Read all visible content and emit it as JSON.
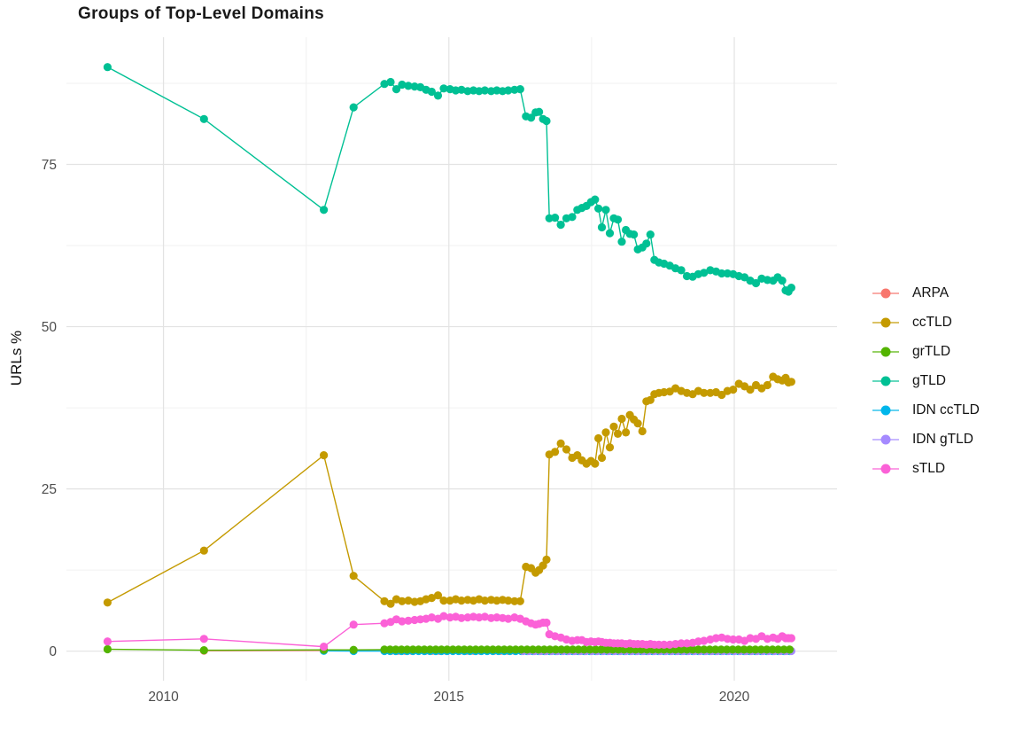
{
  "chart_data": {
    "type": "line",
    "title": "Groups of Top-Level Domains",
    "xlabel": "",
    "ylabel": "URLs %",
    "x_ticks": [
      2010,
      2015,
      2020
    ],
    "y_ticks": [
      0,
      25,
      50,
      75
    ],
    "x_minor_ticks": [
      2012.5,
      2017.5
    ],
    "y_minor_ticks": [
      12.5,
      37.5,
      62.5,
      87.5
    ],
    "xlim": [
      2008.3,
      2021.8
    ],
    "ylim": [
      -4.55,
      94.6
    ],
    "grid": true,
    "legend_position": "right",
    "panel_background": "#ffffff",
    "grid_major_color": "#e3e3e3",
    "grid_minor_color": "#f1f1f1",
    "tick_label_color": "#4d4d4d",
    "text_color": "#1a1a1a",
    "draw_order": [
      "ARPA",
      "IDN ccTLD",
      "IDN gTLD",
      "ccTLD",
      "grTLD",
      "gTLD",
      "sTLD"
    ],
    "series": [
      {
        "name": "ARPA",
        "color": "#F8766D",
        "points": [
          [
            2010.71,
            0.08
          ],
          [
            2012.81,
            0.12
          ]
        ],
        "flat": {
          "from": 2013.87,
          "to": 2021.0,
          "step": 0.12,
          "value": 0.05
        }
      },
      {
        "name": "ccTLD",
        "color": "#C49A00",
        "points": [
          [
            2009.02,
            7.5
          ],
          [
            2010.71,
            15.5
          ],
          [
            2012.81,
            30.2
          ],
          [
            2013.33,
            11.6
          ],
          [
            2013.87,
            7.7
          ],
          [
            2013.98,
            7.3
          ],
          [
            2014.08,
            8.0
          ],
          [
            2014.18,
            7.7
          ],
          [
            2014.29,
            7.8
          ],
          [
            2014.4,
            7.6
          ],
          [
            2014.5,
            7.7
          ],
          [
            2014.6,
            8.0
          ],
          [
            2014.7,
            8.2
          ],
          [
            2014.81,
            8.6
          ],
          [
            2014.91,
            7.8
          ],
          [
            2015.02,
            7.8
          ],
          [
            2015.12,
            8.0
          ],
          [
            2015.22,
            7.8
          ],
          [
            2015.33,
            7.9
          ],
          [
            2015.43,
            7.8
          ],
          [
            2015.53,
            8.0
          ],
          [
            2015.63,
            7.8
          ],
          [
            2015.74,
            7.9
          ],
          [
            2015.84,
            7.8
          ],
          [
            2015.94,
            7.9
          ],
          [
            2016.04,
            7.8
          ],
          [
            2016.15,
            7.7
          ],
          [
            2016.25,
            7.7
          ],
          [
            2016.35,
            13.0
          ],
          [
            2016.44,
            12.8
          ],
          [
            2016.52,
            12.1
          ],
          [
            2016.58,
            12.5
          ],
          [
            2016.65,
            13.2
          ],
          [
            2016.71,
            14.1
          ],
          [
            2016.76,
            30.3
          ],
          [
            2016.86,
            30.7
          ],
          [
            2016.96,
            32.0
          ],
          [
            2017.06,
            31.1
          ],
          [
            2017.16,
            29.8
          ],
          [
            2017.25,
            30.2
          ],
          [
            2017.33,
            29.4
          ],
          [
            2017.41,
            28.9
          ],
          [
            2017.49,
            29.3
          ],
          [
            2017.56,
            28.9
          ],
          [
            2017.62,
            32.8
          ],
          [
            2017.68,
            29.8
          ],
          [
            2017.75,
            33.7
          ],
          [
            2017.82,
            31.4
          ],
          [
            2017.89,
            34.6
          ],
          [
            2017.96,
            33.5
          ],
          [
            2018.03,
            35.8
          ],
          [
            2018.1,
            33.7
          ],
          [
            2018.17,
            36.4
          ],
          [
            2018.24,
            35.7
          ],
          [
            2018.31,
            35.1
          ],
          [
            2018.39,
            33.9
          ],
          [
            2018.46,
            38.5
          ],
          [
            2018.53,
            38.7
          ],
          [
            2018.6,
            39.6
          ],
          [
            2018.68,
            39.8
          ],
          [
            2018.77,
            39.9
          ],
          [
            2018.87,
            40.0
          ],
          [
            2018.97,
            40.5
          ],
          [
            2019.07,
            40.1
          ],
          [
            2019.17,
            39.8
          ],
          [
            2019.27,
            39.6
          ],
          [
            2019.37,
            40.1
          ],
          [
            2019.47,
            39.8
          ],
          [
            2019.58,
            39.8
          ],
          [
            2019.68,
            39.9
          ],
          [
            2019.78,
            39.5
          ],
          [
            2019.88,
            40.1
          ],
          [
            2019.98,
            40.3
          ],
          [
            2020.08,
            41.2
          ],
          [
            2020.18,
            40.8
          ],
          [
            2020.28,
            40.3
          ],
          [
            2020.38,
            41.0
          ],
          [
            2020.48,
            40.5
          ],
          [
            2020.58,
            41.0
          ],
          [
            2020.68,
            42.3
          ],
          [
            2020.76,
            41.9
          ],
          [
            2020.84,
            41.7
          ],
          [
            2020.9,
            42.1
          ],
          [
            2020.95,
            41.4
          ],
          [
            2021.0,
            41.5
          ]
        ]
      },
      {
        "name": "grTLD",
        "color": "#53B400",
        "points": [
          [
            2009.02,
            0.3
          ],
          [
            2010.71,
            0.15
          ],
          [
            2012.81,
            0.2
          ],
          [
            2013.33,
            0.2
          ]
        ],
        "flat": {
          "from": 2013.87,
          "to": 2021.0,
          "step": 0.1,
          "value": 0.25
        }
      },
      {
        "name": "gTLD",
        "color": "#00C094",
        "points": [
          [
            2009.02,
            90.0
          ],
          [
            2010.71,
            82.0
          ],
          [
            2012.81,
            68.0
          ],
          [
            2013.33,
            83.8
          ],
          [
            2013.87,
            87.4
          ],
          [
            2013.98,
            87.7
          ],
          [
            2014.08,
            86.6
          ],
          [
            2014.18,
            87.3
          ],
          [
            2014.29,
            87.1
          ],
          [
            2014.4,
            87.0
          ],
          [
            2014.5,
            86.9
          ],
          [
            2014.6,
            86.5
          ],
          [
            2014.7,
            86.2
          ],
          [
            2014.81,
            85.6
          ],
          [
            2014.91,
            86.7
          ],
          [
            2015.02,
            86.6
          ],
          [
            2015.12,
            86.4
          ],
          [
            2015.22,
            86.5
          ],
          [
            2015.33,
            86.3
          ],
          [
            2015.43,
            86.4
          ],
          [
            2015.53,
            86.3
          ],
          [
            2015.63,
            86.4
          ],
          [
            2015.74,
            86.3
          ],
          [
            2015.84,
            86.4
          ],
          [
            2015.94,
            86.3
          ],
          [
            2016.04,
            86.4
          ],
          [
            2016.15,
            86.5
          ],
          [
            2016.25,
            86.6
          ],
          [
            2016.35,
            82.4
          ],
          [
            2016.44,
            82.2
          ],
          [
            2016.52,
            83.0
          ],
          [
            2016.58,
            83.1
          ],
          [
            2016.65,
            82.0
          ],
          [
            2016.71,
            81.7
          ],
          [
            2016.76,
            66.7
          ],
          [
            2016.86,
            66.8
          ],
          [
            2016.96,
            65.7
          ],
          [
            2017.06,
            66.7
          ],
          [
            2017.16,
            66.9
          ],
          [
            2017.25,
            68.0
          ],
          [
            2017.33,
            68.3
          ],
          [
            2017.41,
            68.6
          ],
          [
            2017.49,
            69.2
          ],
          [
            2017.56,
            69.6
          ],
          [
            2017.62,
            68.2
          ],
          [
            2017.68,
            65.3
          ],
          [
            2017.75,
            68.0
          ],
          [
            2017.82,
            64.4
          ],
          [
            2017.89,
            66.7
          ],
          [
            2017.96,
            66.5
          ],
          [
            2018.03,
            63.1
          ],
          [
            2018.1,
            64.9
          ],
          [
            2018.17,
            64.3
          ],
          [
            2018.24,
            64.2
          ],
          [
            2018.31,
            61.9
          ],
          [
            2018.39,
            62.2
          ],
          [
            2018.46,
            62.8
          ],
          [
            2018.53,
            64.2
          ],
          [
            2018.6,
            60.3
          ],
          [
            2018.68,
            59.9
          ],
          [
            2018.77,
            59.7
          ],
          [
            2018.87,
            59.4
          ],
          [
            2018.97,
            59.0
          ],
          [
            2019.07,
            58.7
          ],
          [
            2019.17,
            57.8
          ],
          [
            2019.27,
            57.7
          ],
          [
            2019.37,
            58.1
          ],
          [
            2019.47,
            58.3
          ],
          [
            2019.58,
            58.7
          ],
          [
            2019.68,
            58.5
          ],
          [
            2019.78,
            58.2
          ],
          [
            2019.88,
            58.2
          ],
          [
            2019.98,
            58.1
          ],
          [
            2020.08,
            57.8
          ],
          [
            2020.18,
            57.6
          ],
          [
            2020.28,
            57.1
          ],
          [
            2020.38,
            56.7
          ],
          [
            2020.48,
            57.4
          ],
          [
            2020.58,
            57.2
          ],
          [
            2020.68,
            57.1
          ],
          [
            2020.76,
            57.6
          ],
          [
            2020.84,
            57.1
          ],
          [
            2020.9,
            55.6
          ],
          [
            2020.95,
            55.4
          ],
          [
            2021.0,
            56.0
          ]
        ]
      },
      {
        "name": "IDN ccTLD",
        "color": "#00B6EB",
        "points": [
          [
            2012.81,
            0.05
          ],
          [
            2013.33,
            0.03
          ]
        ],
        "flat": {
          "from": 2013.87,
          "to": 2021.0,
          "step": 0.1,
          "value": 0.03
        }
      },
      {
        "name": "IDN gTLD",
        "color": "#A58AFF",
        "points": [],
        "flat": {
          "from": 2016.3,
          "to": 2021.0,
          "step": 0.1,
          "value": 0.02
        }
      },
      {
        "name": "sTLD",
        "color": "#FB61D7",
        "points": [
          [
            2009.02,
            1.5
          ],
          [
            2010.71,
            1.9
          ],
          [
            2012.81,
            0.7
          ],
          [
            2013.33,
            4.1
          ],
          [
            2013.87,
            4.3
          ],
          [
            2013.98,
            4.5
          ],
          [
            2014.08,
            4.9
          ],
          [
            2014.18,
            4.6
          ],
          [
            2014.29,
            4.7
          ],
          [
            2014.4,
            4.8
          ],
          [
            2014.5,
            4.9
          ],
          [
            2014.6,
            5.0
          ],
          [
            2014.7,
            5.2
          ],
          [
            2014.81,
            5.0
          ],
          [
            2014.91,
            5.4
          ],
          [
            2015.02,
            5.2
          ],
          [
            2015.12,
            5.3
          ],
          [
            2015.22,
            5.1
          ],
          [
            2015.33,
            5.2
          ],
          [
            2015.43,
            5.3
          ],
          [
            2015.53,
            5.2
          ],
          [
            2015.63,
            5.3
          ],
          [
            2015.74,
            5.1
          ],
          [
            2015.84,
            5.2
          ],
          [
            2015.94,
            5.1
          ],
          [
            2016.04,
            5.0
          ],
          [
            2016.15,
            5.2
          ],
          [
            2016.25,
            5.0
          ],
          [
            2016.35,
            4.6
          ],
          [
            2016.44,
            4.3
          ],
          [
            2016.52,
            4.1
          ],
          [
            2016.58,
            4.2
          ],
          [
            2016.65,
            4.4
          ],
          [
            2016.71,
            4.4
          ],
          [
            2016.76,
            2.6
          ],
          [
            2016.86,
            2.3
          ],
          [
            2016.96,
            2.1
          ],
          [
            2017.06,
            1.8
          ],
          [
            2017.16,
            1.6
          ],
          [
            2017.25,
            1.7
          ],
          [
            2017.33,
            1.7
          ],
          [
            2017.41,
            1.4
          ],
          [
            2017.49,
            1.5
          ],
          [
            2017.56,
            1.4
          ],
          [
            2017.62,
            1.5
          ],
          [
            2017.68,
            1.4
          ],
          [
            2017.75,
            1.3
          ],
          [
            2017.82,
            1.3
          ],
          [
            2017.89,
            1.2
          ],
          [
            2017.96,
            1.2
          ],
          [
            2018.03,
            1.2
          ],
          [
            2018.1,
            1.1
          ],
          [
            2018.17,
            1.2
          ],
          [
            2018.24,
            1.1
          ],
          [
            2018.31,
            1.1
          ],
          [
            2018.39,
            1.1
          ],
          [
            2018.46,
            1.0
          ],
          [
            2018.53,
            1.1
          ],
          [
            2018.6,
            1.0
          ],
          [
            2018.68,
            1.0
          ],
          [
            2018.77,
            1.0
          ],
          [
            2018.87,
            1.0
          ],
          [
            2018.97,
            1.1
          ],
          [
            2019.07,
            1.2
          ],
          [
            2019.17,
            1.2
          ],
          [
            2019.27,
            1.3
          ],
          [
            2019.37,
            1.5
          ],
          [
            2019.47,
            1.6
          ],
          [
            2019.58,
            1.8
          ],
          [
            2019.68,
            2.0
          ],
          [
            2019.78,
            2.1
          ],
          [
            2019.88,
            1.9
          ],
          [
            2019.98,
            1.8
          ],
          [
            2020.08,
            1.8
          ],
          [
            2020.18,
            1.6
          ],
          [
            2020.28,
            2.0
          ],
          [
            2020.38,
            1.9
          ],
          [
            2020.48,
            2.3
          ],
          [
            2020.58,
            1.9
          ],
          [
            2020.68,
            2.1
          ],
          [
            2020.76,
            1.9
          ],
          [
            2020.84,
            2.3
          ],
          [
            2020.9,
            2.0
          ],
          [
            2020.95,
            2.0
          ],
          [
            2021.0,
            2.0
          ]
        ]
      }
    ]
  }
}
